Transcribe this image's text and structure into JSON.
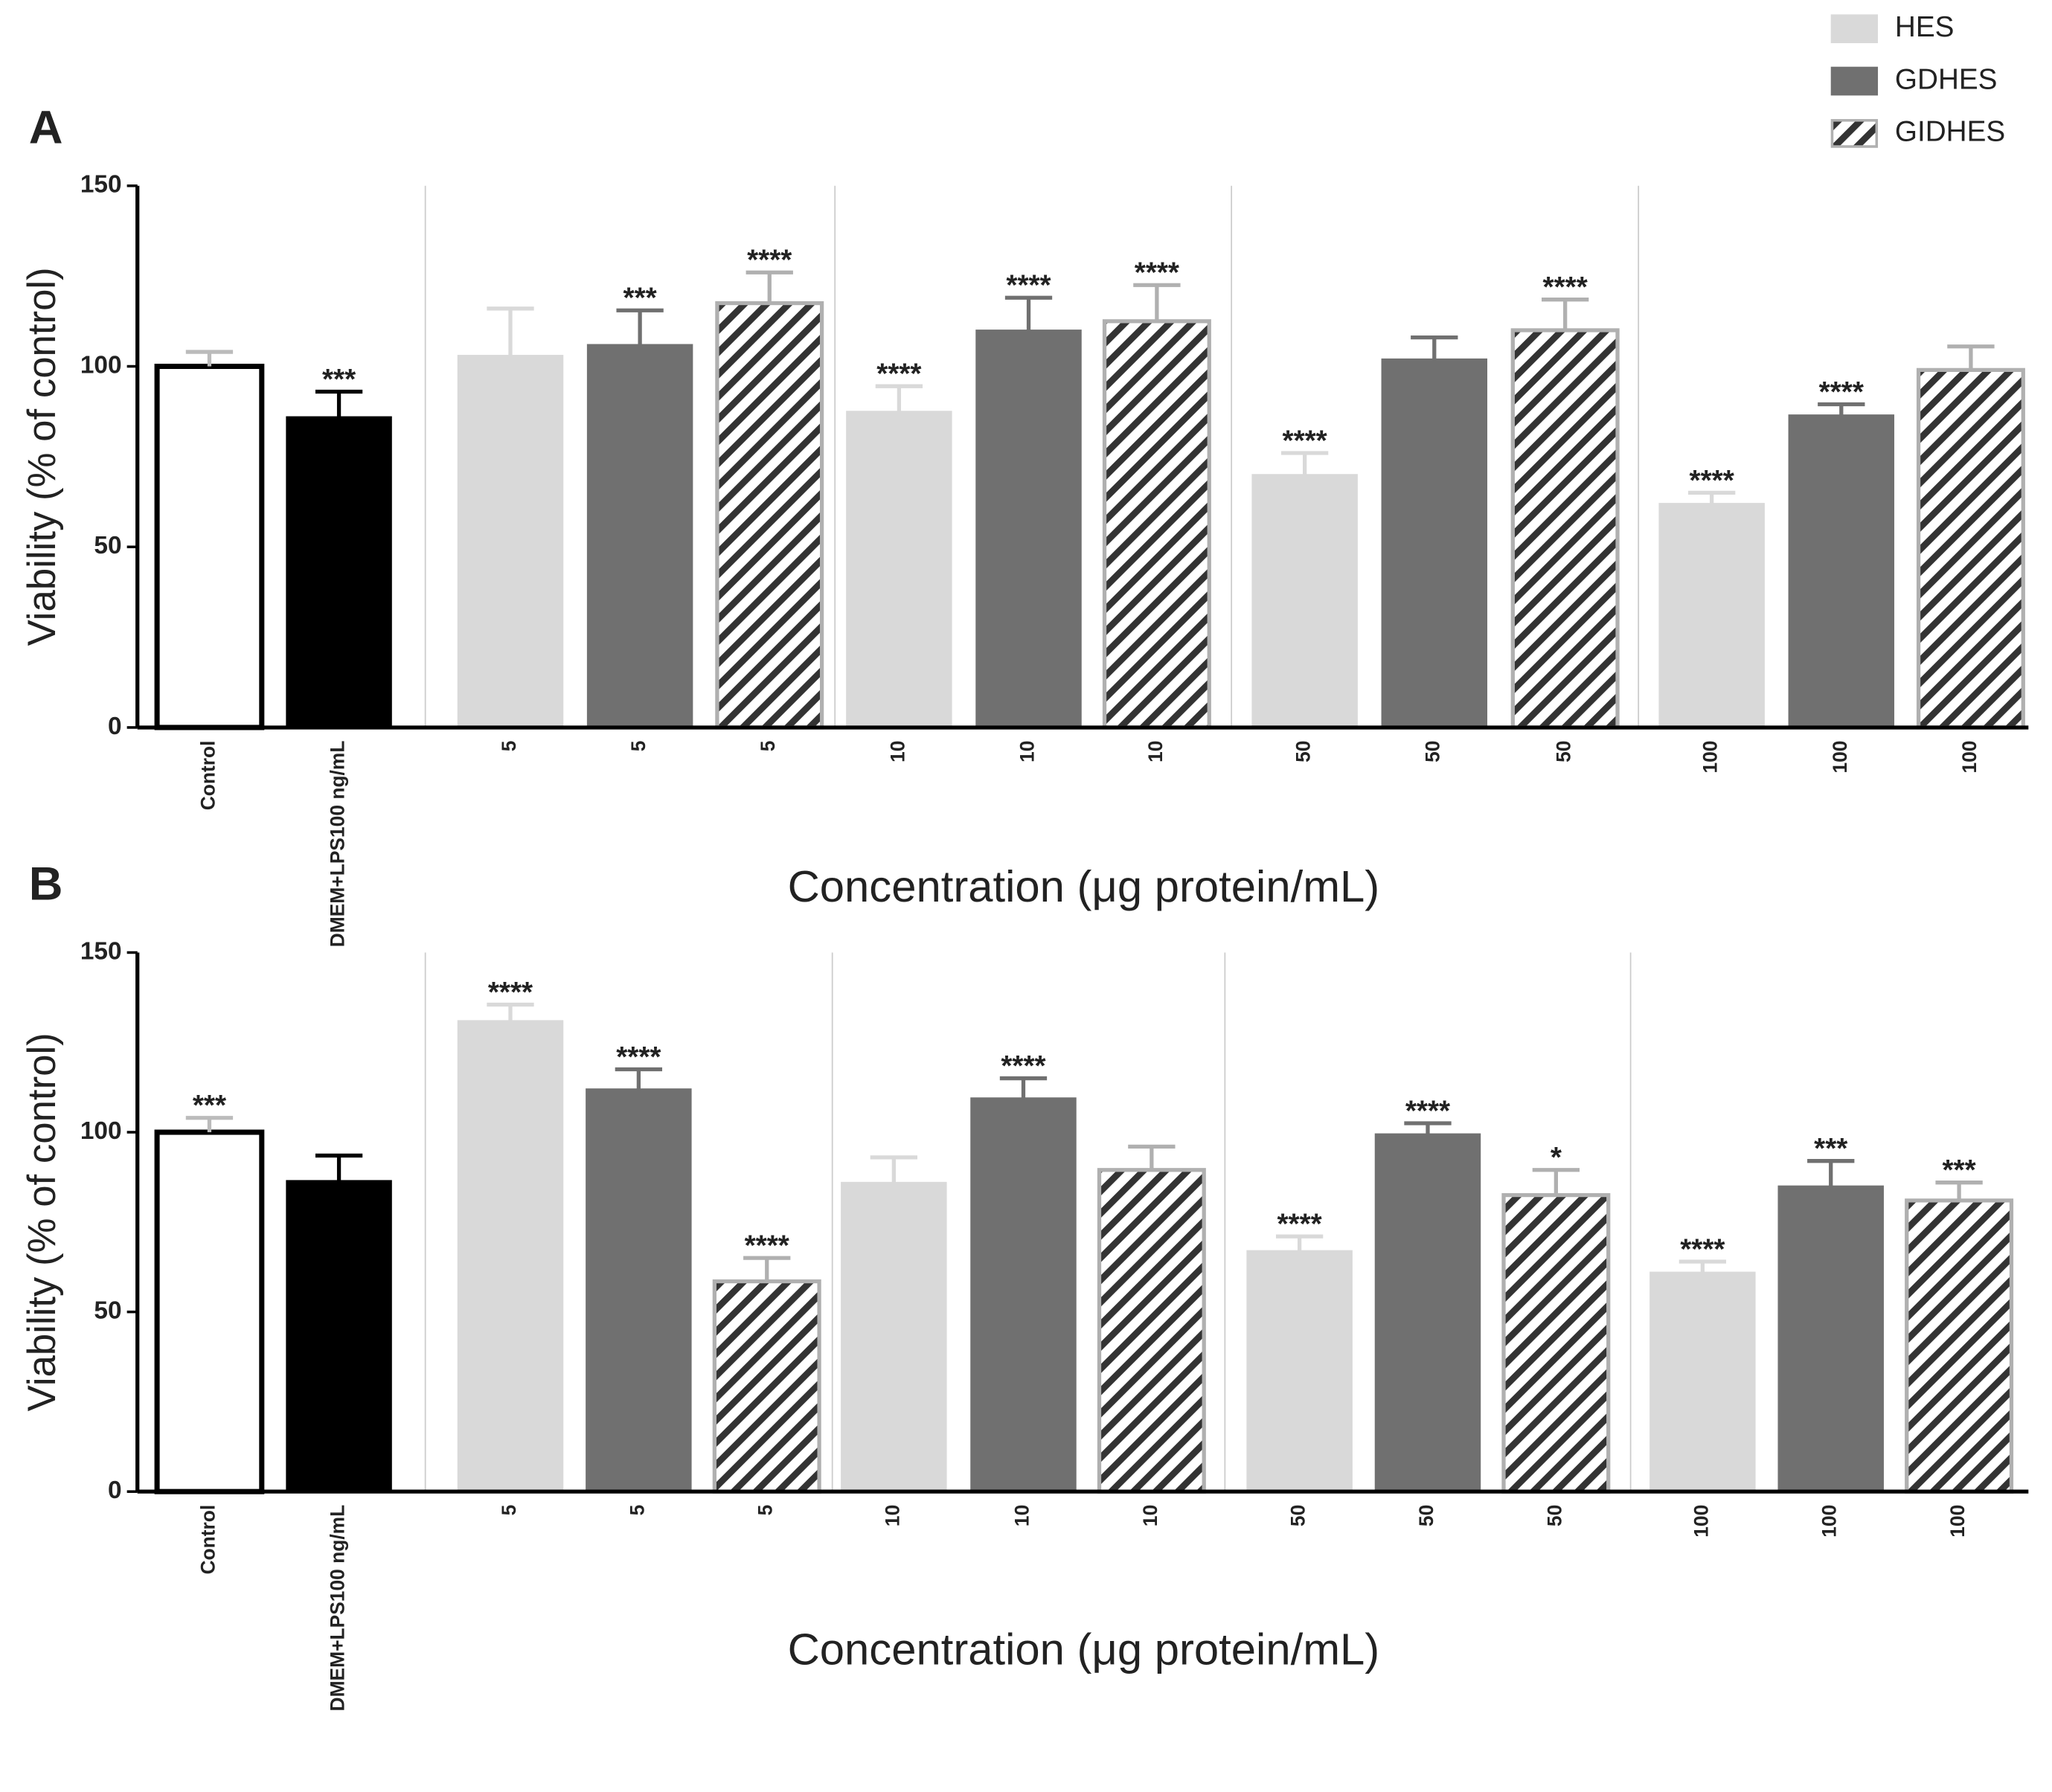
{
  "legend": {
    "position": "top-right",
    "entries": [
      {
        "name": "HES",
        "color": "#d9d9d9",
        "hatch": false
      },
      {
        "name": "GDHES",
        "color": "#707070",
        "hatch": false
      },
      {
        "name": "GIDHES",
        "color": "#ffffff",
        "hatch": true
      }
    ]
  },
  "chart_data": [
    {
      "type": "bar",
      "panel": "A",
      "ylabel": "Viability (%  of control)",
      "xlabel": "Concentration (μg protein/mL)",
      "categories": [
        "Control",
        "DMEM+LPS100 ng/mL",
        "5",
        "5",
        "5",
        "10",
        "10",
        "10",
        "50",
        "50",
        "50",
        "100",
        "100",
        "100"
      ],
      "values": [
        100,
        86,
        103,
        106,
        117.5,
        87.5,
        110,
        112.5,
        70,
        102,
        110,
        62,
        86.5,
        99
      ],
      "errors": [
        4,
        7,
        13,
        9.5,
        8.5,
        7,
        9,
        10,
        6,
        6,
        8.5,
        3,
        3,
        6.5
      ],
      "annotations": [
        null,
        "***",
        null,
        "***",
        "****",
        "****",
        "****",
        "****",
        "****",
        null,
        "****",
        "****",
        "****",
        null
      ],
      "colors": [
        "#ffffff",
        "#000000",
        "#d9d9d9",
        "#707070",
        "#ffffff",
        "#d9d9d9",
        "#707070",
        "#ffffff",
        "#d9d9d9",
        "#707070",
        "#ffffff",
        "#d9d9d9",
        "#707070",
        "#ffffff"
      ],
      "edgecolors": [
        "#000000",
        "#000000",
        "#d9d9d9",
        "#707070",
        "#b0b0b0",
        "#d9d9d9",
        "#707070",
        "#b0b0b0",
        "#d9d9d9",
        "#707070",
        "#b0b0b0",
        "#d9d9d9",
        "#707070",
        "#b0b0b0"
      ],
      "hatch": [
        false,
        false,
        false,
        false,
        true,
        false,
        false,
        true,
        false,
        false,
        true,
        false,
        false,
        true
      ],
      "ylim": [
        0,
        150
      ],
      "yticks": [
        0,
        50,
        100,
        150
      ]
    },
    {
      "type": "bar",
      "panel": "B",
      "ylabel": "Viability (%  of control)",
      "xlabel": "Concentration (μg protein/mL)",
      "categories": [
        "Control",
        "DMEM+LPS100 ng/mL",
        "5",
        "5",
        "5",
        "10",
        "10",
        "10",
        "50",
        "50",
        "50",
        "100",
        "100",
        "100"
      ],
      "values": [
        100,
        86.5,
        131,
        112,
        58.5,
        86,
        109.5,
        89.5,
        67,
        99.5,
        82.5,
        61,
        85,
        81
      ],
      "errors": [
        4,
        7,
        4.5,
        5.5,
        6.5,
        7,
        5.5,
        6.5,
        4,
        3,
        7,
        3,
        7,
        5
      ],
      "annotations": [
        "***",
        null,
        "****",
        "****",
        "****",
        null,
        "****",
        null,
        "****",
        "****",
        "*",
        "****",
        "***",
        "***"
      ],
      "colors": [
        "#ffffff",
        "#000000",
        "#d9d9d9",
        "#707070",
        "#ffffff",
        "#d9d9d9",
        "#707070",
        "#ffffff",
        "#d9d9d9",
        "#707070",
        "#ffffff",
        "#d9d9d9",
        "#707070",
        "#ffffff"
      ],
      "edgecolors": [
        "#000000",
        "#000000",
        "#d9d9d9",
        "#707070",
        "#b0b0b0",
        "#d9d9d9",
        "#707070",
        "#b0b0b0",
        "#d9d9d9",
        "#707070",
        "#b0b0b0",
        "#d9d9d9",
        "#707070",
        "#b0b0b0"
      ],
      "hatch": [
        false,
        false,
        false,
        false,
        true,
        false,
        false,
        true,
        false,
        false,
        true,
        false,
        false,
        true
      ],
      "ylim": [
        0,
        150
      ],
      "yticks": [
        0,
        50,
        100,
        150
      ]
    }
  ]
}
